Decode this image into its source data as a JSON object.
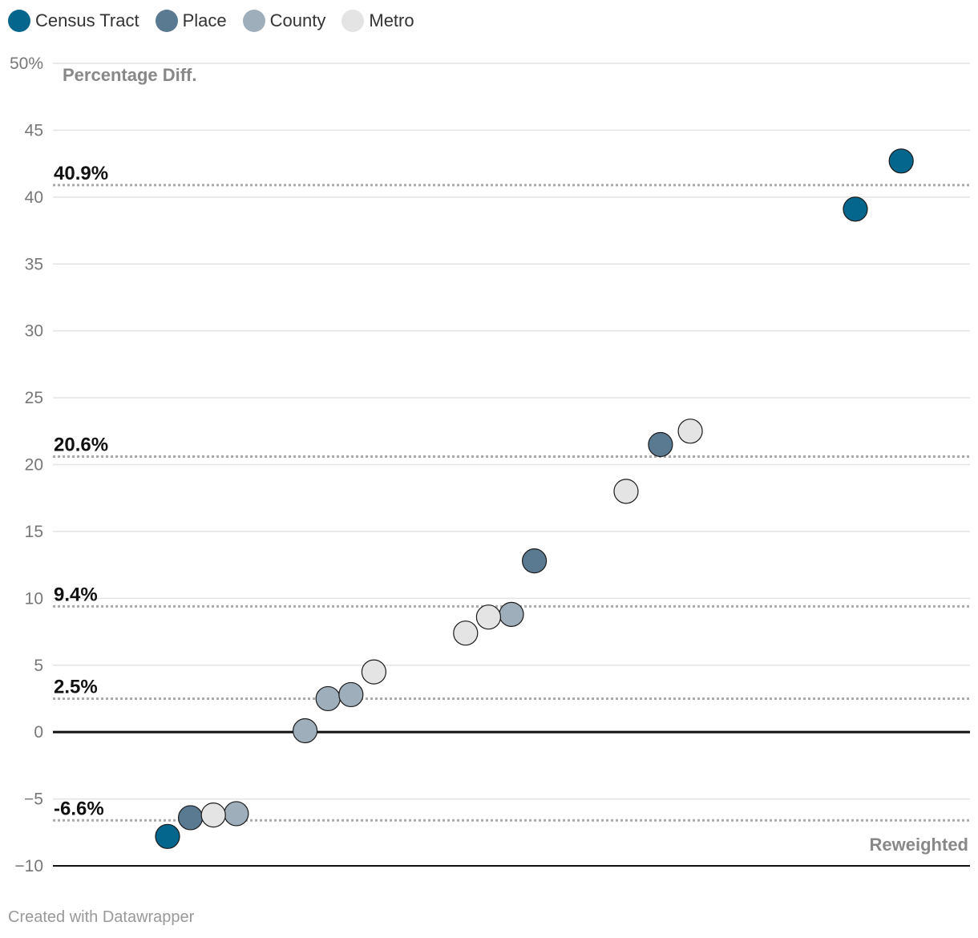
{
  "legend": [
    {
      "label": "Census Tract",
      "color": "#05668d"
    },
    {
      "label": "Place",
      "color": "#5a7a92"
    },
    {
      "label": "County",
      "color": "#9eaebb"
    },
    {
      "label": "Metro",
      "color": "#e4e4e4"
    }
  ],
  "footer": {
    "credit": "Created with Datawrapper"
  },
  "chart_data": {
    "type": "scatter",
    "title": "",
    "ylabel": "Percentage Diff.",
    "xlabel": "Reweighted",
    "ylim": [
      -10,
      50
    ],
    "yticks": [
      {
        "value": 50,
        "label": "50%"
      },
      {
        "value": 45,
        "label": "45"
      },
      {
        "value": 40,
        "label": "40"
      },
      {
        "value": 35,
        "label": "35"
      },
      {
        "value": 30,
        "label": "30"
      },
      {
        "value": 25,
        "label": "25"
      },
      {
        "value": 20,
        "label": "20"
      },
      {
        "value": 15,
        "label": "15"
      },
      {
        "value": 10,
        "label": "10"
      },
      {
        "value": 5,
        "label": "5"
      },
      {
        "value": 0,
        "label": "0"
      },
      {
        "value": -5,
        "label": "−5"
      },
      {
        "value": -10,
        "label": "−10"
      }
    ],
    "grid": true,
    "legend_position": "top-left",
    "reference_lines": [
      {
        "value": 40.9,
        "label": "40.9%"
      },
      {
        "value": 20.6,
        "label": "20.6%"
      },
      {
        "value": 9.4,
        "label": "9.4%"
      },
      {
        "value": 2.5,
        "label": "2.5%"
      },
      {
        "value": -6.6,
        "label": "-6.6%"
      }
    ],
    "series": [
      {
        "name": "Census Tract",
        "color": "#05668d",
        "points": [
          {
            "x": 5,
            "y": -7.8
          },
          {
            "x": 35,
            "y": 39.1
          },
          {
            "x": 37,
            "y": 42.7
          }
        ]
      },
      {
        "name": "Place",
        "color": "#5a7a92",
        "points": [
          {
            "x": 6,
            "y": -6.4
          },
          {
            "x": 21,
            "y": 12.8
          },
          {
            "x": 26.5,
            "y": 21.5
          }
        ]
      },
      {
        "name": "County",
        "color": "#9eaebb",
        "points": [
          {
            "x": 8,
            "y": -6.1
          },
          {
            "x": 11,
            "y": 0.1
          },
          {
            "x": 12,
            "y": 2.5
          },
          {
            "x": 13,
            "y": 2.8
          },
          {
            "x": 20,
            "y": 8.8
          }
        ]
      },
      {
        "name": "Metro",
        "color": "#e4e4e4",
        "points": [
          {
            "x": 7,
            "y": -6.2
          },
          {
            "x": 14,
            "y": 4.5
          },
          {
            "x": 18,
            "y": 7.4
          },
          {
            "x": 19,
            "y": 8.6
          },
          {
            "x": 25,
            "y": 18.0
          },
          {
            "x": 27.8,
            "y": 22.5
          }
        ]
      }
    ]
  }
}
